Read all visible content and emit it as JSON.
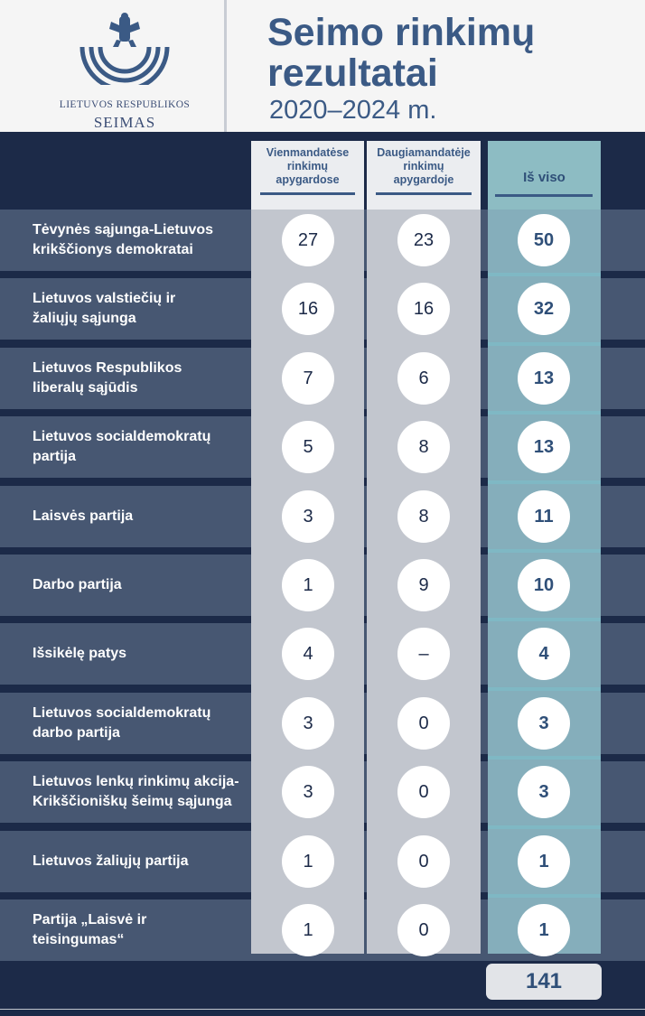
{
  "header": {
    "logo_line1": "LIETUVOS RESPUBLIKOS",
    "logo_line2": "SEIMAS",
    "title_line1": "Seimo rinkimų",
    "title_line2": "rezultatai",
    "subtitle": "2020–2024 m."
  },
  "columns": {
    "a": [
      "Vienmandatėse",
      "rinkimų",
      "apygardose"
    ],
    "b": [
      "Daugiamandatėje",
      "rinkimų",
      "apygardoje"
    ],
    "c": [
      "Iš viso"
    ]
  },
  "chart_data": {
    "type": "table",
    "title": "Seimo rinkimų rezultatai 2020–2024 m.",
    "columns": [
      "Vienmandatėse rinkimų apygardose",
      "Daugiamandatėje rinkimų apygardoje",
      "Iš viso"
    ],
    "rows": [
      {
        "party": [
          "Tėvynės sąjunga-Lietuvos",
          "krikščionys demokratai"
        ],
        "a": "27",
        "b": "23",
        "total": "50"
      },
      {
        "party": [
          "Lietuvos valstiečių ir",
          "žaliųjų sąjunga"
        ],
        "a": "16",
        "b": "16",
        "total": "32"
      },
      {
        "party": [
          "Lietuvos Respublikos",
          "liberalų sąjūdis"
        ],
        "a": "7",
        "b": "6",
        "total": "13"
      },
      {
        "party": [
          "Lietuvos socialdemokratų",
          "partija"
        ],
        "a": "5",
        "b": "8",
        "total": "13"
      },
      {
        "party": [
          "Laisvės partija"
        ],
        "a": "3",
        "b": "8",
        "total": "11"
      },
      {
        "party": [
          "Darbo partija"
        ],
        "a": "1",
        "b": "9",
        "total": "10"
      },
      {
        "party": [
          "Išsikėlę patys"
        ],
        "a": "4",
        "b": "–",
        "total": "4"
      },
      {
        "party": [
          "Lietuvos socialdemokratų",
          "darbo partija"
        ],
        "a": "3",
        "b": "0",
        "total": "3"
      },
      {
        "party": [
          "Lietuvos lenkų rinkimų akcija-",
          "Krikščioniškų šeimų sąjunga"
        ],
        "a": "3",
        "b": "0",
        "total": "3"
      },
      {
        "party": [
          "Lietuvos žaliųjų partija"
        ],
        "a": "1",
        "b": "0",
        "total": "1"
      },
      {
        "party": [
          "Partija „Laisvė ir",
          "teisingumas“"
        ],
        "a": "1",
        "b": "0",
        "total": "1"
      }
    ],
    "grand_total": "141"
  },
  "colors": {
    "background": "#1c2a48",
    "row_band": "#475772",
    "column_gray": "#c2c6ce",
    "column_total": "#85aebb",
    "title_blue": "#3b5a85"
  }
}
